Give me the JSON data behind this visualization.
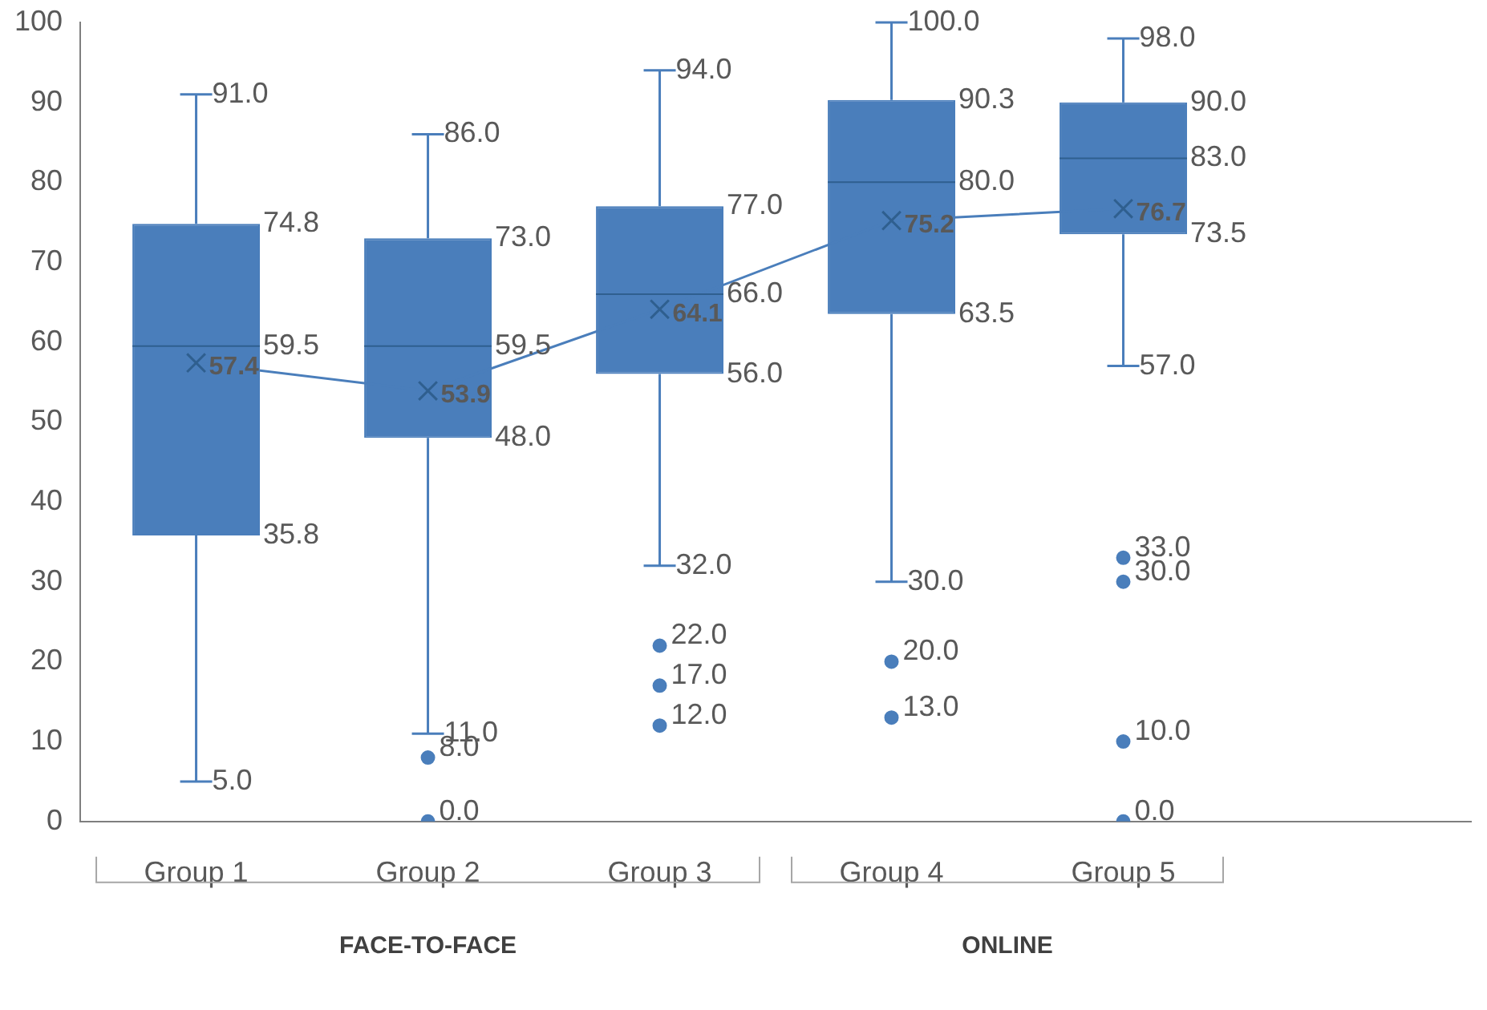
{
  "chart_data": {
    "type": "box",
    "categories": [
      "Group 1",
      "Group 2",
      "Group 3",
      "Group 4",
      "Group 5"
    ],
    "boxes": [
      {
        "low": 5.0,
        "q1": 35.8,
        "median": 59.5,
        "q3": 74.8,
        "high": 91.0,
        "mean": 57.4
      },
      {
        "low": 11.0,
        "q1": 48.0,
        "median": 59.5,
        "q3": 73.0,
        "high": 86.0,
        "mean": 53.9,
        "outliers": [
          8.0,
          0.0
        ]
      },
      {
        "low": 32.0,
        "q1": 56.0,
        "median": 66.0,
        "q3": 77.0,
        "high": 94.0,
        "mean": 64.1,
        "outliers": [
          22.0,
          17.0,
          12.0
        ]
      },
      {
        "low": 30.0,
        "q1": 63.5,
        "median": 80.0,
        "q3": 90.3,
        "high": 100.0,
        "mean": 75.2,
        "outliers": [
          20.0,
          13.0
        ]
      },
      {
        "low": 57.0,
        "q1": 73.5,
        "median": 83.0,
        "q3": 90.0,
        "high": 98.0,
        "mean": 76.7,
        "outliers": [
          33.0,
          30.0,
          10.0,
          0.0
        ]
      }
    ],
    "color": "#4a7ebb",
    "ylim": [
      0,
      100
    ],
    "yticks": [
      0,
      10,
      20,
      30,
      40,
      50,
      60,
      70,
      80,
      90,
      100
    ],
    "grid": false,
    "legend": false,
    "marker": "cross",
    "value_labels": [
      [
        "91.0",
        "74.8",
        "59.5",
        "57.4",
        "35.8",
        "5.0"
      ],
      [
        "86.0",
        "73.0",
        "59.5",
        "53.9",
        "48.0",
        "11.0",
        "8.0",
        "0.0"
      ],
      [
        "94.0",
        "77.0",
        "66.0",
        "64.1",
        "56.0",
        "32.0",
        "22.0",
        "17.0",
        "12.0"
      ],
      [
        "100.0",
        "90.3",
        "80.0",
        "75.2",
        "63.5",
        "30.0",
        "20.0",
        "13.0"
      ],
      [
        "98.0",
        "90.0",
        "83.0",
        "76.7",
        "73.5",
        "57.0",
        "33.0",
        "30.0",
        "10.0",
        "0.0"
      ]
    ],
    "annotations": [
      "FACE-TO-FACE",
      "ONLINE"
    ]
  }
}
